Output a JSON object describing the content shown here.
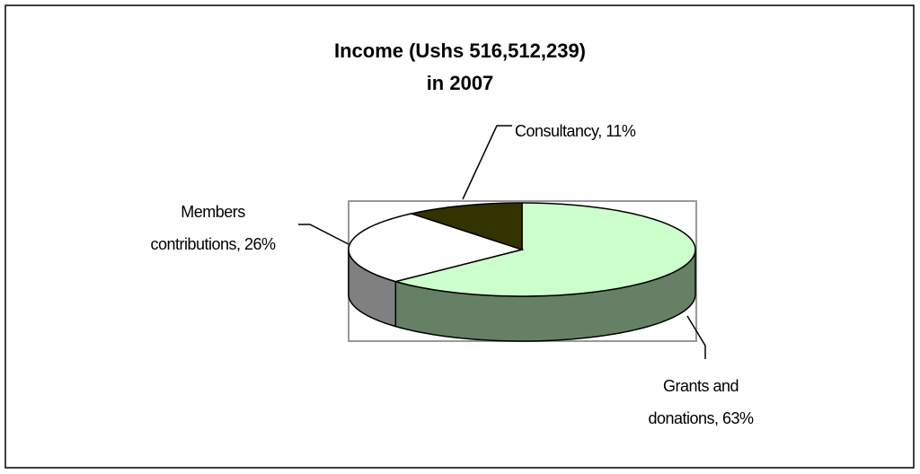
{
  "chart_data": {
    "type": "pie3d",
    "title": [
      "Income (Ushs 516,512,239)",
      "in 2007"
    ],
    "values": [
      63,
      26,
      11
    ],
    "value_labels": [
      [
        "Grants and",
        "donations, 63%"
      ],
      [
        "Members",
        "contributions, 26%"
      ],
      [
        "Consultancy, 11%"
      ]
    ],
    "colors": [
      "#ccffcc",
      "#ffffff",
      "#333300"
    ],
    "side_colors": [
      "#668066",
      "#808080",
      "#1a1a00"
    ]
  }
}
